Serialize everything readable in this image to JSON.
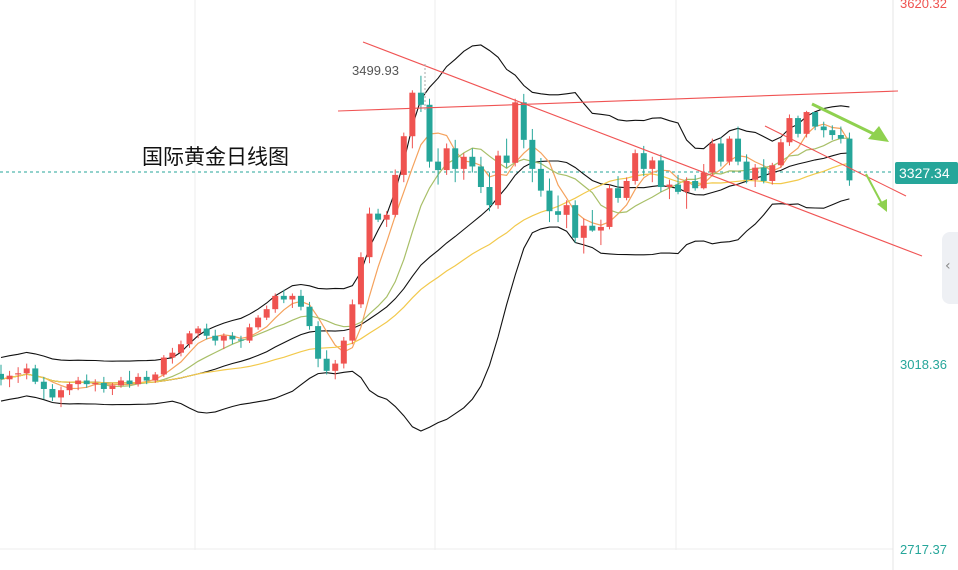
{
  "chart_data": {
    "type": "candlestick",
    "title": "国际黄金日线图",
    "ylim": [
      2717.37,
      3620.32
    ],
    "axis_labels": [
      "3620.32",
      "3018.36",
      "2717.37"
    ],
    "current_price": "3327.34",
    "high_annotation": "3499.93",
    "candles": [
      [
        3007,
        3022,
        2988,
        2998
      ],
      [
        2998,
        3012,
        2985,
        3004
      ],
      [
        3006,
        3018,
        2992,
        3008
      ],
      [
        3008,
        3024,
        2998,
        3016
      ],
      [
        3016,
        3022,
        2990,
        2994
      ],
      [
        2994,
        3002,
        2965,
        2982
      ],
      [
        2982,
        2990,
        2962,
        2968
      ],
      [
        2968,
        2986,
        2952,
        2980
      ],
      [
        2980,
        2994,
        2972,
        2990
      ],
      [
        2990,
        3002,
        2980,
        2996
      ],
      [
        2996,
        3006,
        2984,
        2990
      ],
      [
        2990,
        2998,
        2978,
        2992
      ],
      [
        2992,
        3002,
        2976,
        2982
      ],
      [
        2982,
        2992,
        2972,
        2988
      ],
      [
        2988,
        3002,
        2984,
        2996
      ],
      [
        2996,
        3012,
        2984,
        2990
      ],
      [
        2990,
        3008,
        2986,
        3002
      ],
      [
        3002,
        3012,
        2990,
        2996
      ],
      [
        2996,
        3010,
        2992,
        3006
      ],
      [
        3006,
        3038,
        3002,
        3034
      ],
      [
        3034,
        3050,
        3024,
        3042
      ],
      [
        3042,
        3062,
        3036,
        3056
      ],
      [
        3056,
        3078,
        3050,
        3074
      ],
      [
        3074,
        3086,
        3066,
        3082
      ],
      [
        3082,
        3090,
        3064,
        3070
      ],
      [
        3070,
        3080,
        3054,
        3062
      ],
      [
        3062,
        3074,
        3048,
        3070
      ],
      [
        3070,
        3076,
        3056,
        3064
      ],
      [
        3064,
        3070,
        3050,
        3062
      ],
      [
        3062,
        3090,
        3058,
        3084
      ],
      [
        3084,
        3104,
        3080,
        3100
      ],
      [
        3100,
        3120,
        3096,
        3114
      ],
      [
        3114,
        3140,
        3108,
        3136
      ],
      [
        3136,
        3146,
        3124,
        3130
      ],
      [
        3130,
        3140,
        3116,
        3136
      ],
      [
        3136,
        3146,
        3112,
        3118
      ],
      [
        3118,
        3126,
        3080,
        3086
      ],
      [
        3086,
        3094,
        3018,
        3032
      ],
      [
        3032,
        3046,
        3006,
        3012
      ],
      [
        3012,
        3030,
        2998,
        3024
      ],
      [
        3024,
        3068,
        3016,
        3062
      ],
      [
        3062,
        3130,
        3056,
        3122
      ],
      [
        3122,
        3208,
        3116,
        3200
      ],
      [
        3200,
        3282,
        3190,
        3272
      ],
      [
        3272,
        3280,
        3258,
        3262
      ],
      [
        3262,
        3276,
        3250,
        3270
      ],
      [
        3270,
        3345,
        3266,
        3336
      ],
      [
        3336,
        3406,
        3324,
        3400
      ],
      [
        3400,
        3476,
        3380,
        3472
      ],
      [
        3472,
        3500,
        3440,
        3452
      ],
      [
        3452,
        3462,
        3348,
        3358
      ],
      [
        3358,
        3380,
        3320,
        3344
      ],
      [
        3344,
        3388,
        3336,
        3380
      ],
      [
        3380,
        3394,
        3324,
        3346
      ],
      [
        3346,
        3372,
        3328,
        3366
      ],
      [
        3366,
        3380,
        3340,
        3350
      ],
      [
        3350,
        3366,
        3306,
        3316
      ],
      [
        3316,
        3340,
        3276,
        3286
      ],
      [
        3286,
        3376,
        3280,
        3368
      ],
      [
        3368,
        3396,
        3348,
        3356
      ],
      [
        3356,
        3462,
        3350,
        3456
      ],
      [
        3456,
        3470,
        3380,
        3394
      ],
      [
        3394,
        3412,
        3324,
        3346
      ],
      [
        3346,
        3364,
        3300,
        3310
      ],
      [
        3310,
        3330,
        3258,
        3276
      ],
      [
        3276,
        3302,
        3258,
        3270
      ],
      [
        3270,
        3294,
        3248,
        3286
      ],
      [
        3286,
        3294,
        3224,
        3232
      ],
      [
        3232,
        3264,
        3206,
        3252
      ],
      [
        3252,
        3278,
        3242,
        3244
      ],
      [
        3244,
        3262,
        3220,
        3250
      ],
      [
        3250,
        3320,
        3246,
        3314
      ],
      [
        3314,
        3334,
        3290,
        3298
      ],
      [
        3298,
        3332,
        3294,
        3326
      ],
      [
        3326,
        3378,
        3320,
        3372
      ],
      [
        3372,
        3384,
        3334,
        3346
      ],
      [
        3346,
        3366,
        3324,
        3360
      ],
      [
        3360,
        3370,
        3308,
        3316
      ],
      [
        3316,
        3328,
        3296,
        3320
      ],
      [
        3320,
        3336,
        3304,
        3308
      ],
      [
        3308,
        3332,
        3280,
        3326
      ],
      [
        3326,
        3336,
        3310,
        3314
      ],
      [
        3314,
        3354,
        3312,
        3340
      ],
      [
        3340,
        3396,
        3334,
        3388
      ],
      [
        3388,
        3398,
        3350,
        3358
      ],
      [
        3358,
        3400,
        3352,
        3396
      ],
      [
        3396,
        3416,
        3352,
        3358
      ],
      [
        3358,
        3370,
        3322,
        3328
      ],
      [
        3328,
        3354,
        3316,
        3348
      ],
      [
        3348,
        3362,
        3322,
        3326
      ],
      [
        3326,
        3356,
        3320,
        3352
      ],
      [
        3352,
        3396,
        3348,
        3390
      ],
      [
        3390,
        3436,
        3384,
        3430
      ],
      [
        3430,
        3434,
        3398,
        3404
      ],
      [
        3404,
        3442,
        3398,
        3440
      ],
      [
        3440,
        3436,
        3410,
        3416
      ],
      [
        3416,
        3424,
        3398,
        3410
      ],
      [
        3410,
        3418,
        3394,
        3402
      ],
      [
        3402,
        3416,
        3388,
        3396
      ],
      [
        3396,
        3406,
        3318,
        3327
      ]
    ]
  },
  "ui": {
    "colors": {
      "up": "#ef5350",
      "down": "#26a69a",
      "bands": "#111111",
      "ma_fast": "#f5a25d",
      "ma_mid": "#a8bf68",
      "ma_slow": "#f2c94c",
      "trend": "#f05454",
      "arrow": "#8fd14f"
    },
    "side_tab_icon": "chevron-left-icon"
  }
}
